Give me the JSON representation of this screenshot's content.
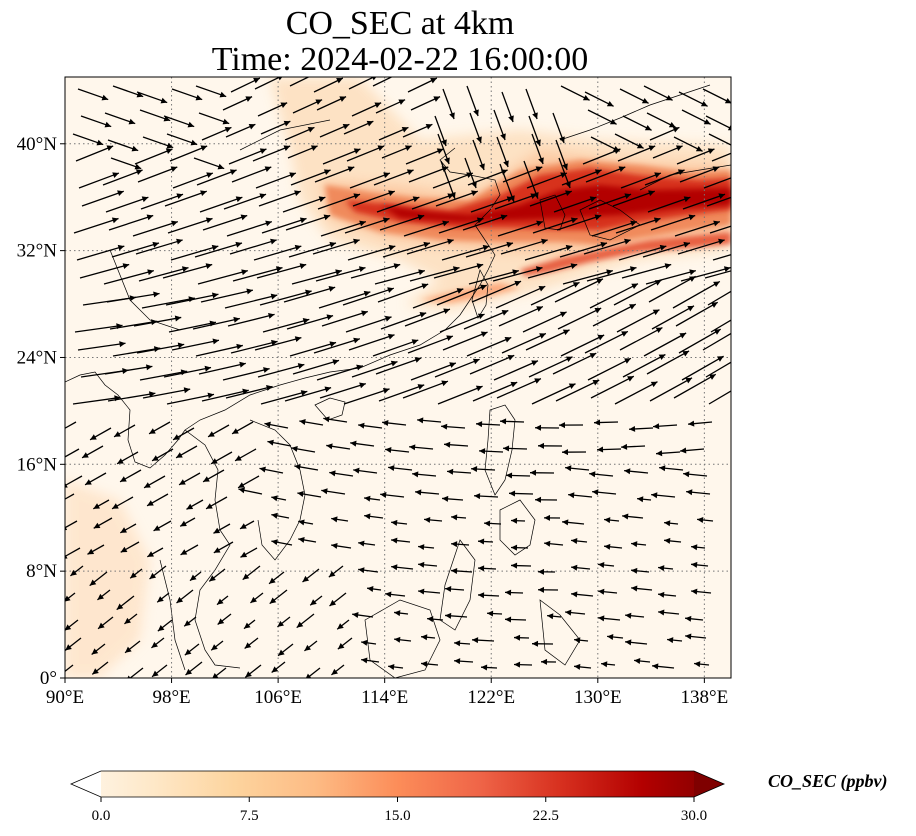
{
  "title": {
    "line1": "CO_SEC at 4km",
    "line2": "Time: 2024-02-22 16:00:00"
  },
  "map": {
    "lon_ticks": [
      "90°E",
      "98°E",
      "106°E",
      "114°E",
      "122°E",
      "130°E",
      "138°E"
    ],
    "lat_ticks": [
      "0°",
      "8°N",
      "16°N",
      "24°N",
      "32°N",
      "40°N"
    ],
    "lon_range": [
      90,
      140
    ],
    "lat_range": [
      0,
      45
    ],
    "gridlines": true,
    "field_name": "CO_SEC",
    "vectors": "wind arrows"
  },
  "colorbar": {
    "label": "CO_SEC (ppbv)",
    "ticks": [
      "0.0",
      "7.5",
      "15.0",
      "22.5",
      "30.0"
    ],
    "range": [
      0,
      30
    ],
    "colormap": "OrRd",
    "colors": [
      "#fff7ec",
      "#fee8c8",
      "#fdd49e",
      "#fdbb84",
      "#fc8d59",
      "#ef6548",
      "#d7301f",
      "#b30000",
      "#7f0000"
    ],
    "extend": "both"
  }
}
